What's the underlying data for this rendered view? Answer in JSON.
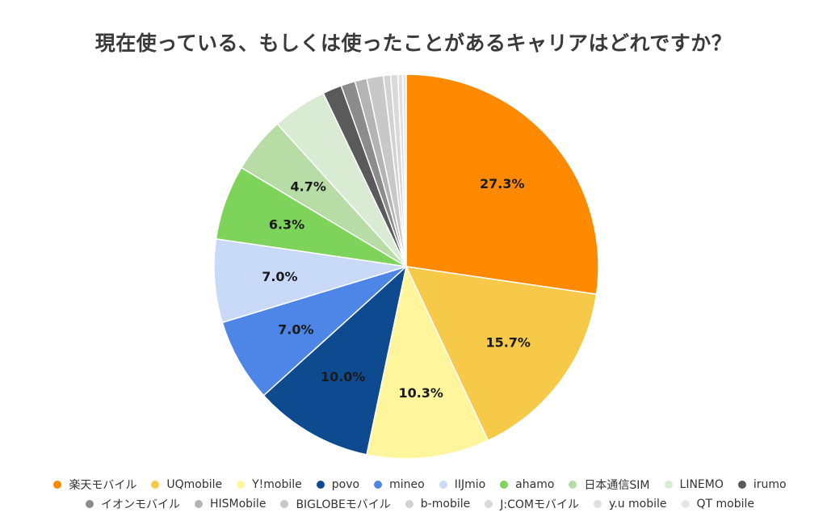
{
  "chart_data": {
    "type": "pie",
    "title": "現在使っている、もしくは使ったことがあるキャリアはどれですか？",
    "legend_position": "bottom",
    "slices": [
      {
        "label": "楽天モバイル",
        "value": 27.3,
        "display": "27.3%",
        "color": "#ff8a00"
      },
      {
        "label": "UQmobile",
        "value": 15.7,
        "display": "15.7%",
        "color": "#f7c948"
      },
      {
        "label": "Y!mobile",
        "value": 10.3,
        "display": "10.3%",
        "color": "#fff59c"
      },
      {
        "label": "povo",
        "value": 10.0,
        "display": "10.0%",
        "color": "#0d4a8f"
      },
      {
        "label": "mineo",
        "value": 7.0,
        "display": "7.0%",
        "color": "#4d86e6"
      },
      {
        "label": "IIJmio",
        "value": 7.0,
        "display": "7.0%",
        "color": "#c9daf8"
      },
      {
        "label": "ahamo",
        "value": 6.3,
        "display": "6.3%",
        "color": "#7ed35a"
      },
      {
        "label": "日本通信SIM",
        "value": 4.7,
        "display": "4.7%",
        "color": "#b7dca5"
      },
      {
        "label": "LINEMO",
        "value": 4.6,
        "display": "",
        "color": "#d9ecd3"
      },
      {
        "label": "irumo",
        "value": 1.6,
        "display": "",
        "color": "#5a5a5a"
      },
      {
        "label": "イオンモバイル",
        "value": 1.2,
        "display": "",
        "color": "#8c8c8c"
      },
      {
        "label": "HISMobile",
        "value": 1.0,
        "display": "",
        "color": "#b4b4b4"
      },
      {
        "label": "BIGLOBEモバイル",
        "value": 1.4,
        "display": "",
        "color": "#c8c8c8"
      },
      {
        "label": "b-mobile",
        "value": 0.6,
        "display": "",
        "color": "#d2d2d2"
      },
      {
        "label": "J:COMモバイル",
        "value": 0.6,
        "display": "",
        "color": "#d9d9d9"
      },
      {
        "label": "y.u mobile",
        "value": 0.4,
        "display": "",
        "color": "#e0e0e0"
      },
      {
        "label": "QT mobile",
        "value": 0.3,
        "display": "",
        "color": "#e6e6e6"
      }
    ]
  }
}
